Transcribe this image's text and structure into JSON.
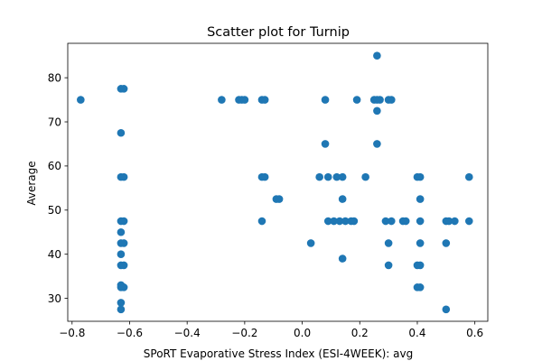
{
  "chart_data": {
    "type": "scatter",
    "title": "Scatter plot for Turnip",
    "xlabel": "SPoRT Evaporative Stress Index (ESI-4WEEK): avg",
    "ylabel": "Average",
    "xlim": [
      -0.815,
      0.645
    ],
    "ylim": [
      24.8,
      87.8
    ],
    "x_ticks": [
      -0.8,
      -0.6,
      -0.4,
      -0.2,
      0.0,
      0.2,
      0.4,
      0.6
    ],
    "x_tick_labels": [
      "−0.8",
      "−0.6",
      "−0.4",
      "−0.2",
      "0.0",
      "0.2",
      "0.4",
      "0.6"
    ],
    "y_ticks": [
      30,
      40,
      50,
      60,
      70,
      80
    ],
    "y_tick_labels": [
      "30",
      "40",
      "50",
      "60",
      "70",
      "80"
    ],
    "grid": false,
    "legend": "none",
    "marker_color": "#1f77b4",
    "series": [
      {
        "points": [
          [
            -0.77,
            75
          ],
          [
            -0.63,
            77.5
          ],
          [
            -0.62,
            77.5
          ],
          [
            -0.63,
            67.5
          ],
          [
            -0.63,
            57.5
          ],
          [
            -0.62,
            57.5
          ],
          [
            -0.63,
            47.5
          ],
          [
            -0.62,
            47.5
          ],
          [
            -0.63,
            45
          ],
          [
            -0.63,
            42.5
          ],
          [
            -0.62,
            42.5
          ],
          [
            -0.63,
            40
          ],
          [
            -0.63,
            37.5
          ],
          [
            -0.62,
            37.5
          ],
          [
            -0.63,
            33
          ],
          [
            -0.63,
            32.5
          ],
          [
            -0.62,
            32.5
          ],
          [
            -0.63,
            29
          ],
          [
            -0.63,
            27.5
          ],
          [
            -0.28,
            75
          ],
          [
            -0.22,
            75
          ],
          [
            -0.21,
            75
          ],
          [
            -0.2,
            75
          ],
          [
            -0.14,
            75
          ],
          [
            -0.13,
            75
          ],
          [
            -0.14,
            57.5
          ],
          [
            -0.13,
            57.5
          ],
          [
            -0.14,
            47.5
          ],
          [
            -0.09,
            52.5
          ],
          [
            -0.08,
            52.5
          ],
          [
            0.03,
            42.5
          ],
          [
            0.06,
            57.5
          ],
          [
            0.08,
            75
          ],
          [
            0.08,
            65
          ],
          [
            0.09,
            57.5
          ],
          [
            0.09,
            47.5
          ],
          [
            0.11,
            47.5
          ],
          [
            0.12,
            57.5
          ],
          [
            0.13,
            47.5
          ],
          [
            0.14,
            57.5
          ],
          [
            0.14,
            52.5
          ],
          [
            0.14,
            39
          ],
          [
            0.15,
            47.5
          ],
          [
            0.17,
            47.5
          ],
          [
            0.18,
            47.5
          ],
          [
            0.19,
            75
          ],
          [
            0.22,
            57.5
          ],
          [
            0.25,
            75
          ],
          [
            0.26,
            75
          ],
          [
            0.27,
            75
          ],
          [
            0.26,
            85
          ],
          [
            0.26,
            72.5
          ],
          [
            0.26,
            65
          ],
          [
            0.3,
            75
          ],
          [
            0.31,
            75
          ],
          [
            0.29,
            47.5
          ],
          [
            0.31,
            47.5
          ],
          [
            0.3,
            42.5
          ],
          [
            0.3,
            37.5
          ],
          [
            0.35,
            47.5
          ],
          [
            0.36,
            47.5
          ],
          [
            0.4,
            57.5
          ],
          [
            0.41,
            57.5
          ],
          [
            0.41,
            52.5
          ],
          [
            0.41,
            47.5
          ],
          [
            0.41,
            42.5
          ],
          [
            0.4,
            37.5
          ],
          [
            0.41,
            37.5
          ],
          [
            0.41,
            32.5
          ],
          [
            0.4,
            32.5
          ],
          [
            0.5,
            47.5
          ],
          [
            0.51,
            47.5
          ],
          [
            0.53,
            47.5
          ],
          [
            0.5,
            42.5
          ],
          [
            0.5,
            27.5
          ],
          [
            0.58,
            57.5
          ],
          [
            0.58,
            47.5
          ]
        ]
      }
    ]
  }
}
